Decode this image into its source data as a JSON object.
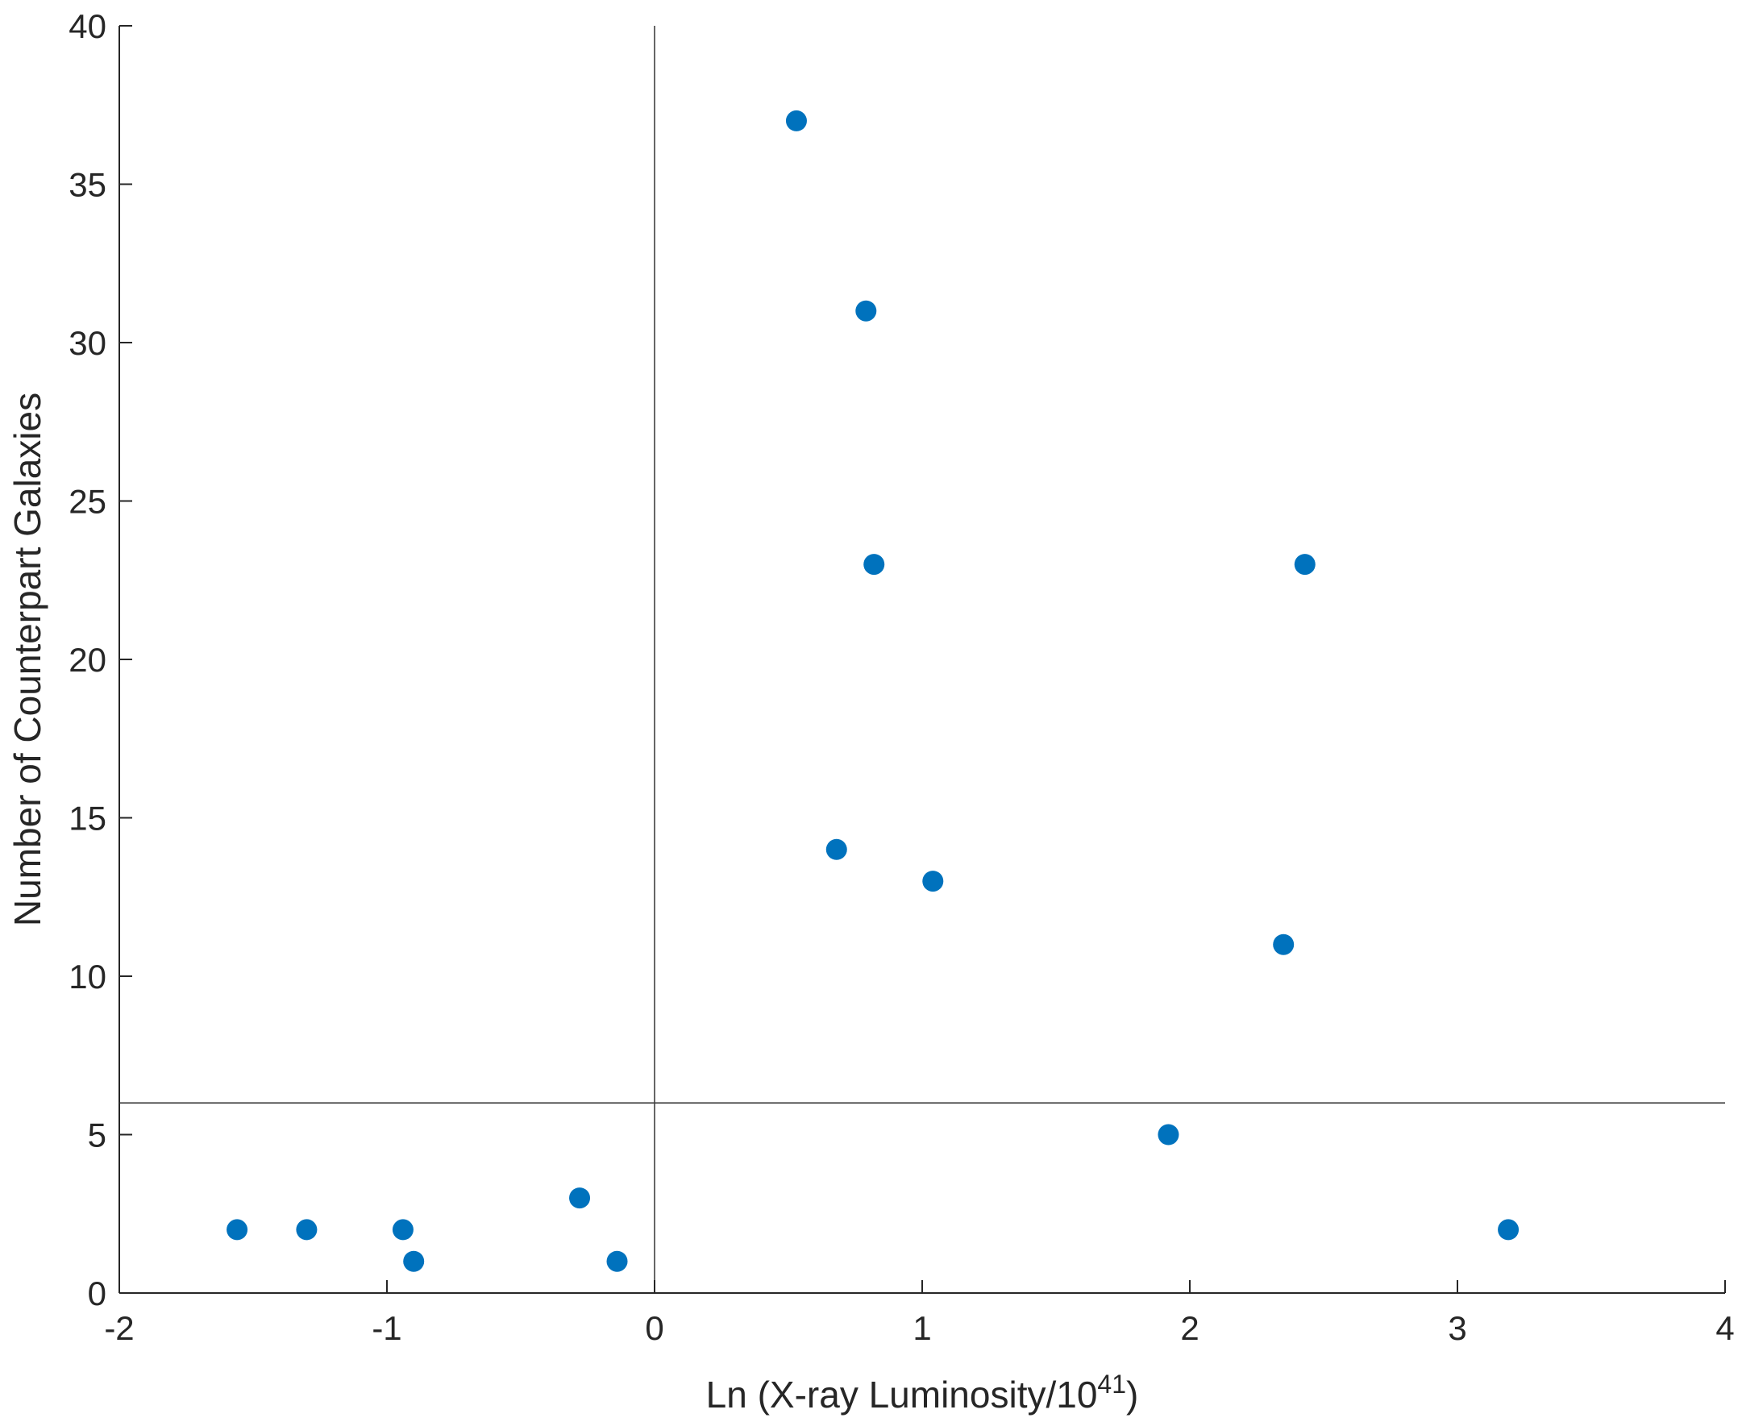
{
  "chart_data": {
    "type": "scatter",
    "xlabel": {
      "prefix": "Ln (X-ray Luminosity/10",
      "superscript": "41",
      "suffix": ")"
    },
    "ylabel": "Number of Counterpart Galaxies",
    "xlim": [
      -2,
      4
    ],
    "ylim": [
      0,
      40
    ],
    "xticks": [
      -2,
      -1,
      0,
      1,
      2,
      3,
      4
    ],
    "yticks": [
      0,
      5,
      10,
      15,
      20,
      25,
      30,
      35,
      40
    ],
    "xtick_labels": [
      "-2",
      "-1",
      "0",
      "1",
      "2",
      "3",
      "4"
    ],
    "ytick_labels": [
      "0",
      "5",
      "10",
      "15",
      "20",
      "25",
      "30",
      "35",
      "40"
    ],
    "reference_lines": {
      "vertical_x": 0,
      "horizontal_y": 6
    },
    "grid": false,
    "marker_color": "#0072BD",
    "series": [
      {
        "points": [
          {
            "x": -1.56,
            "y": 2
          },
          {
            "x": -1.3,
            "y": 2
          },
          {
            "x": -0.94,
            "y": 2
          },
          {
            "x": -0.9,
            "y": 1
          },
          {
            "x": -0.28,
            "y": 3
          },
          {
            "x": -0.14,
            "y": 1
          },
          {
            "x": 0.53,
            "y": 37
          },
          {
            "x": 0.68,
            "y": 14
          },
          {
            "x": 0.79,
            "y": 31
          },
          {
            "x": 0.82,
            "y": 23
          },
          {
            "x": 1.04,
            "y": 13
          },
          {
            "x": 1.92,
            "y": 5
          },
          {
            "x": 2.35,
            "y": 11
          },
          {
            "x": 2.43,
            "y": 23
          },
          {
            "x": 3.19,
            "y": 2
          }
        ]
      }
    ]
  }
}
